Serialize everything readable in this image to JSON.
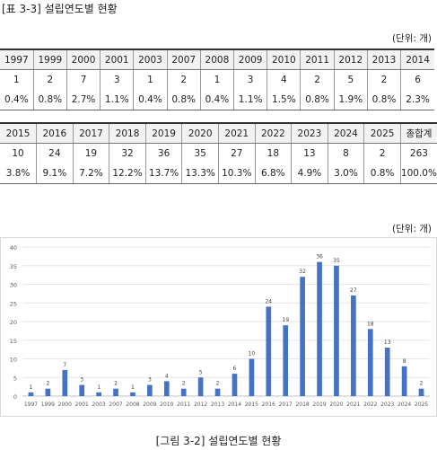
{
  "table_title": "[표 3-3] 설립연도별 현황",
  "table_unit": "(단위: 개)",
  "table1": {
    "years": [
      "1997",
      "1999",
      "2000",
      "2001",
      "2003",
      "2007",
      "2008",
      "2009",
      "2010",
      "2011",
      "2012",
      "2013",
      "2014"
    ],
    "counts": [
      "1",
      "2",
      "7",
      "3",
      "1",
      "2",
      "1",
      "3",
      "4",
      "2",
      "5",
      "2",
      "6"
    ],
    "ratios": [
      "0.4%",
      "0.8%",
      "2.7%",
      "1.1%",
      "0.4%",
      "0.8%",
      "0.4%",
      "1.1%",
      "1.5%",
      "0.8%",
      "1.9%",
      "0.8%",
      "2.3%"
    ]
  },
  "table2": {
    "years": [
      "2015",
      "2016",
      "2017",
      "2018",
      "2019",
      "2020",
      "2021",
      "2022",
      "2023",
      "2024",
      "2025",
      "총합계"
    ],
    "counts": [
      "10",
      "24",
      "19",
      "32",
      "36",
      "35",
      "27",
      "18",
      "13",
      "8",
      "2",
      "263"
    ],
    "ratios": [
      "3.8%",
      "9.1%",
      "7.2%",
      "12.2%",
      "13.7%",
      "13.3%",
      "10.3%",
      "6.8%",
      "4.9%",
      "3.0%",
      "0.8%",
      "100.0%"
    ]
  },
  "chart_unit": "(단위: 개)",
  "chart_caption": "[그림 3-2] 설립연도별 현황",
  "chart_data": {
    "type": "bar",
    "categories": [
      "1997",
      "1999",
      "2000",
      "2001",
      "2003",
      "2007",
      "2008",
      "2009",
      "2010",
      "2011",
      "2012",
      "2013",
      "2014",
      "2015",
      "2016",
      "2017",
      "2018",
      "2019",
      "2020",
      "2021",
      "2022",
      "2023",
      "2024",
      "2025"
    ],
    "values": [
      1,
      2,
      7,
      3,
      1,
      2,
      1,
      3,
      4,
      2,
      5,
      2,
      6,
      10,
      24,
      19,
      32,
      36,
      35,
      27,
      18,
      13,
      8,
      2
    ],
    "ylim": [
      0,
      40
    ],
    "yticks": [
      0,
      5,
      10,
      15,
      20,
      25,
      30,
      35,
      40
    ],
    "grid": true,
    "bar_color": "#4472c4",
    "data_labels": true
  }
}
